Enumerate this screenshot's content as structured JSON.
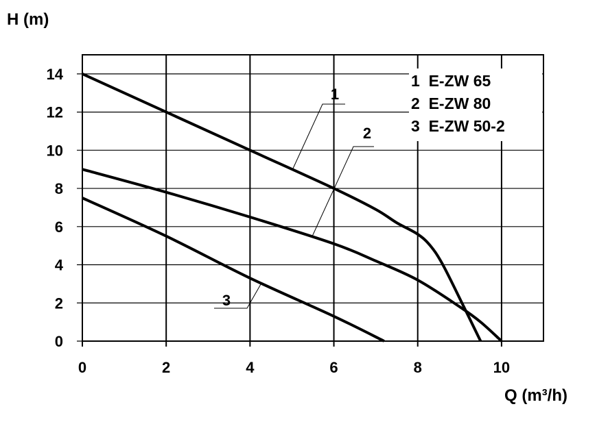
{
  "chart_data": {
    "type": "line",
    "title": "",
    "xlabel": "Q (m³/h)",
    "ylabel": "H (m)",
    "xlim": [
      0,
      11
    ],
    "ylim": [
      0,
      15
    ],
    "xticks": [
      0,
      2,
      4,
      6,
      8,
      10
    ],
    "yticks": [
      0,
      2,
      4,
      6,
      8,
      10,
      12,
      14
    ],
    "grid": true,
    "legend_position": "top-right",
    "legend": [
      "1  E-ZW 65",
      "2  E-ZW 80",
      "3  E-ZW 50-2"
    ],
    "series": [
      {
        "name": "1",
        "x": [
          0,
          2,
          4,
          6,
          7,
          7.5,
          8,
          8.3,
          8.6,
          9.1,
          9.5
        ],
        "y": [
          14,
          12,
          10,
          8,
          6.9,
          6.2,
          5.6,
          5.0,
          4.0,
          1.8,
          0
        ]
      },
      {
        "name": "2",
        "x": [
          0,
          2,
          4,
          6,
          7,
          8,
          9,
          9.5,
          10
        ],
        "y": [
          9,
          7.8,
          6.5,
          5.1,
          4.2,
          3.2,
          1.8,
          1.0,
          0
        ]
      },
      {
        "name": "3",
        "x": [
          0,
          2,
          4,
          6,
          7.2
        ],
        "y": [
          7.5,
          5.5,
          3.3,
          1.3,
          0
        ]
      }
    ]
  },
  "colors": {
    "line": "#000000",
    "grid": "#000000",
    "background": "#ffffff"
  }
}
